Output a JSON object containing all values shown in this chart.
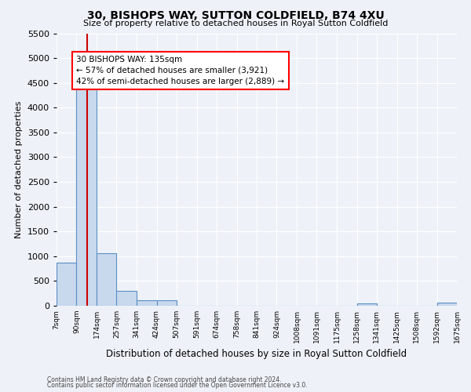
{
  "title": "30, BISHOPS WAY, SUTTON COLDFIELD, B74 4XU",
  "subtitle": "Size of property relative to detached houses in Royal Sutton Coldfield",
  "xlabel": "Distribution of detached houses by size in Royal Sutton Coldfield",
  "ylabel": "Number of detached properties",
  "footnote1": "Contains HM Land Registry data © Crown copyright and database right 2024.",
  "footnote2": "Contains public sector information licensed under the Open Government Licence v3.0.",
  "annotation_line1": "30 BISHOPS WAY: 135sqm",
  "annotation_line2": "← 57% of detached houses are smaller (3,921)",
  "annotation_line3": "42% of semi-detached houses are larger (2,889) →",
  "red_line_x": 135,
  "bar_color": "#c8d9ee",
  "bar_edge_color": "#5b8fc4",
  "red_line_color": "#cc0000",
  "background_color": "#eef2f8",
  "grid_color": "#ffffff",
  "ylim": [
    0,
    5500
  ],
  "bin_edges": [
    7,
    90,
    174,
    257,
    341,
    424,
    507,
    591,
    674,
    758,
    841,
    924,
    1008,
    1091,
    1175,
    1258,
    1341,
    1425,
    1508,
    1592,
    1675
  ],
  "bin_heights": [
    870,
    4620,
    1060,
    300,
    110,
    110,
    0,
    0,
    0,
    0,
    0,
    0,
    0,
    0,
    0,
    55,
    0,
    0,
    0,
    65
  ],
  "yticks": [
    0,
    500,
    1000,
    1500,
    2000,
    2500,
    3000,
    3500,
    4000,
    4500,
    5000,
    5500
  ]
}
